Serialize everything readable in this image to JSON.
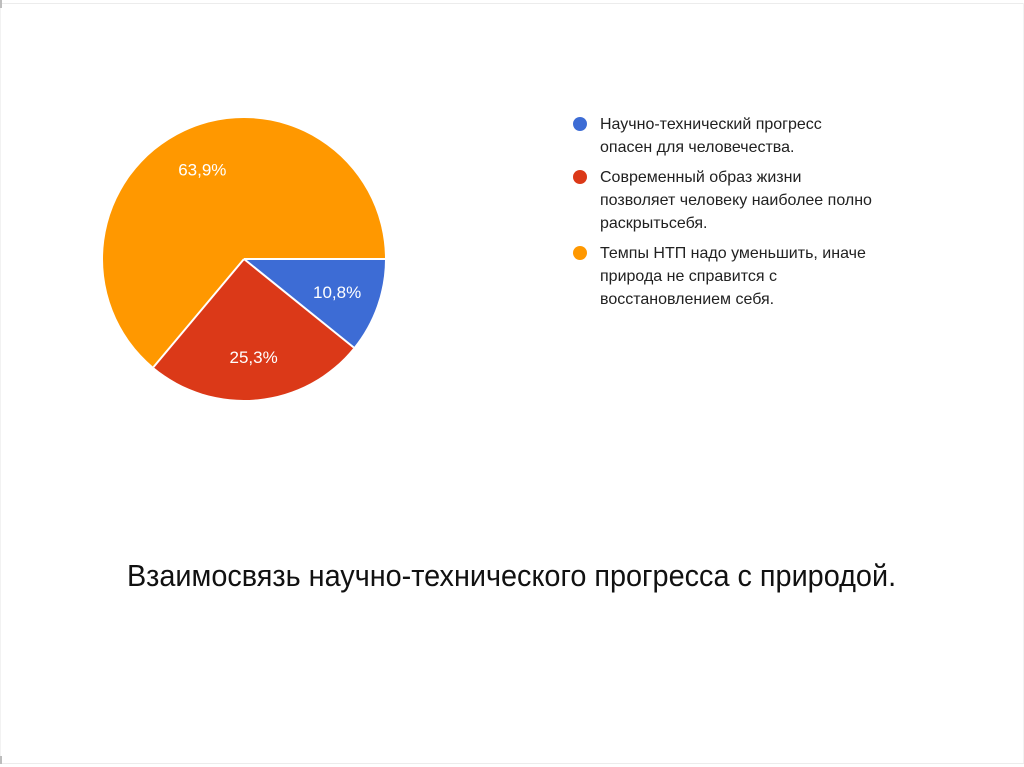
{
  "slide": {
    "background": "#ffffff",
    "edge_line_color": "#ececec"
  },
  "chart_data": {
    "type": "pie",
    "title": "Взаимосвязь научно-технического прогресса с природой.",
    "start_angle_deg": 0,
    "direction": "clockwise",
    "legend_position": "right",
    "label_color": "#ffffff",
    "legend_text_color": "#212121",
    "slices": [
      {
        "label": "Научно-технический прогресс опасен для человечества.",
        "legend_lines": [
          "Научно-технический прогресс",
          "опасен для человечества."
        ],
        "value_pct": 10.8,
        "display": "10,8%",
        "color": "#3D6CD5"
      },
      {
        "label": "Современный образ жизни позволяет человеку наиболее полно раскрытьсебя.",
        "legend_lines": [
          "Современный образ жизни",
          "позволяет человеку наиболее полно",
          "раскрытьсебя."
        ],
        "value_pct": 25.3,
        "display": "25,3%",
        "color": "#DB3918"
      },
      {
        "label": "Темпы НТП надо уменьшить, иначе природа не справится с восстановлением себя.",
        "legend_lines": [
          "Темпы НТП надо уменьшить, иначе",
          "природа не справится с",
          "восстановлением себя."
        ],
        "value_pct": 63.9,
        "display": "63,9%",
        "color": "#FF9800"
      }
    ]
  }
}
